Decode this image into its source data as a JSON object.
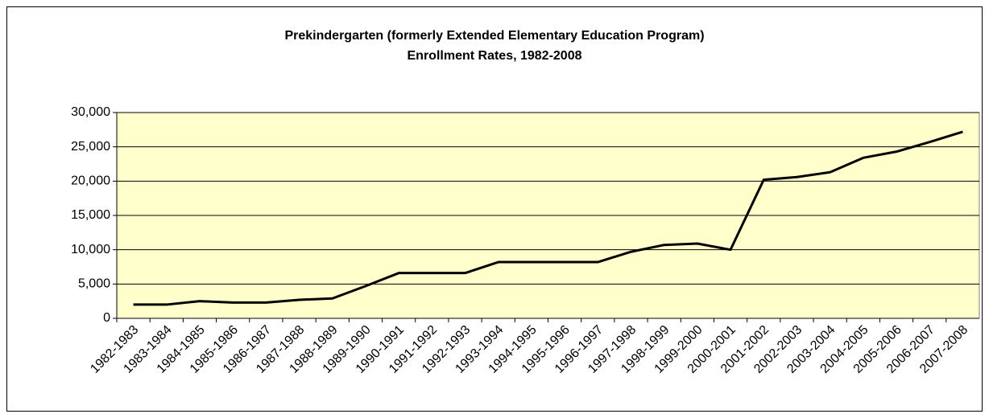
{
  "chart_data": {
    "type": "line",
    "title": "Prekindergarten (formerly Extended Elementary Education Program)",
    "subtitle": "Enrollment Rates, 1982-2008",
    "categories": [
      "1982-1983",
      "1983-1984",
      "1984-1985",
      "1985-1986",
      "1986-1987",
      "1987-1988",
      "1988-1989",
      "1989-1990",
      "1990-1991",
      "1991-1992",
      "1992-1993",
      "1993-1994",
      "1994-1995",
      "1995-1996",
      "1996-1997",
      "1997-1998",
      "1998-1999",
      "1999-2000",
      "2000-2001",
      "2001-2002",
      "2002-2003",
      "2003-2004",
      "2004-2005",
      "2005-2006",
      "2006-2007",
      "2007-2008"
    ],
    "values": [
      2000,
      2000,
      2500,
      2300,
      2300,
      2700,
      2900,
      4700,
      6600,
      6600,
      6600,
      8200,
      8200,
      8200,
      8200,
      9700,
      10700,
      10900,
      10000,
      20200,
      20600,
      21300,
      23400,
      24300,
      25700,
      27200
    ],
    "color": "#000000",
    "ylim": [
      0,
      30000
    ],
    "yticks": [
      0,
      {
        "value": 5000,
        "label": "5,000"
      },
      {
        "value": 10000,
        "label": "10,000"
      },
      {
        "value": 15000,
        "label": "15,000"
      },
      {
        "value": 20000,
        "label": "20,000"
      },
      {
        "value": 25000,
        "label": "25,000"
      },
      {
        "value": 30000,
        "label": "30,000"
      }
    ],
    "grid": true
  }
}
